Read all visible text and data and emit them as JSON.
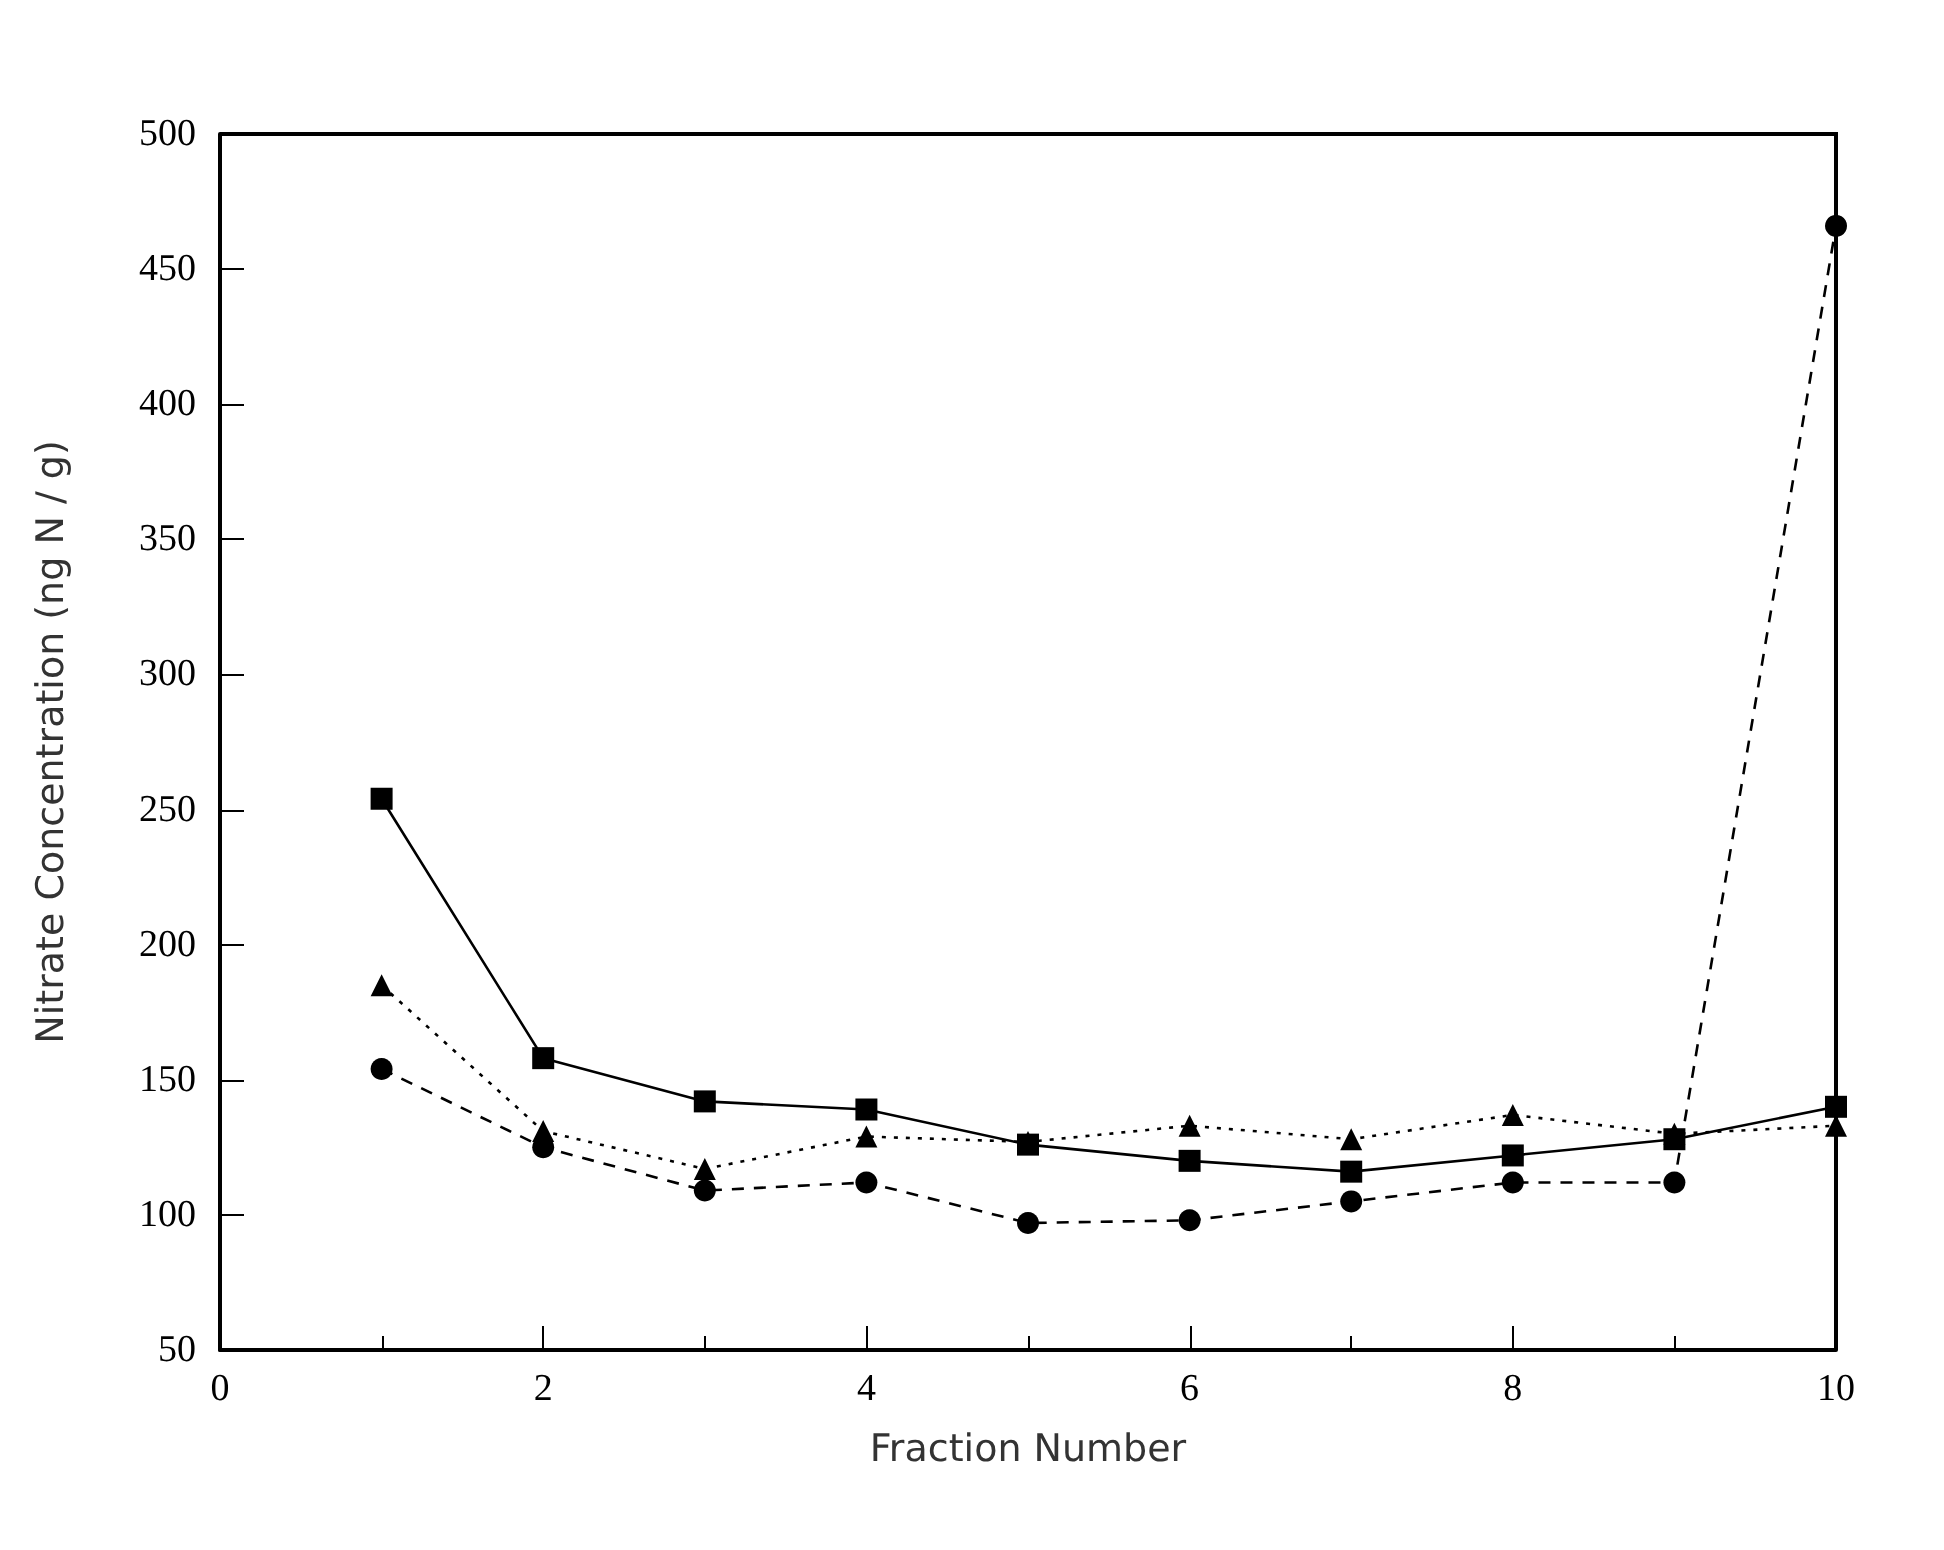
{
  "chart_data": {
    "type": "line",
    "xlabel": "Fraction Number",
    "ylabel": "Nitrate Concentration (ng N / g)",
    "x": [
      1,
      2,
      3,
      4,
      5,
      6,
      7,
      8,
      9,
      10
    ],
    "series": [
      {
        "color": "#000000",
        "marker": "square",
        "line_style": "solid",
        "values": [
          254,
          158,
          142,
          139,
          126,
          120,
          116,
          122,
          128,
          140
        ]
      },
      {
        "color": "#000000",
        "marker": "triangle",
        "line_style": "dotted",
        "values": [
          185,
          131,
          117,
          129,
          127,
          133,
          128,
          137,
          130,
          133
        ]
      },
      {
        "color": "#000000",
        "marker": "circle",
        "line_style": "dashed",
        "values": [
          154,
          125,
          109,
          112,
          97,
          98,
          105,
          112,
          112,
          466
        ]
      }
    ],
    "xlim": [
      0,
      10
    ],
    "xticks": [
      0,
      2,
      4,
      6,
      8,
      10
    ],
    "ylim": [
      50,
      500
    ],
    "yticks": [
      50,
      100,
      150,
      200,
      250,
      300,
      350,
      400,
      450,
      500
    ],
    "grid": false
  }
}
